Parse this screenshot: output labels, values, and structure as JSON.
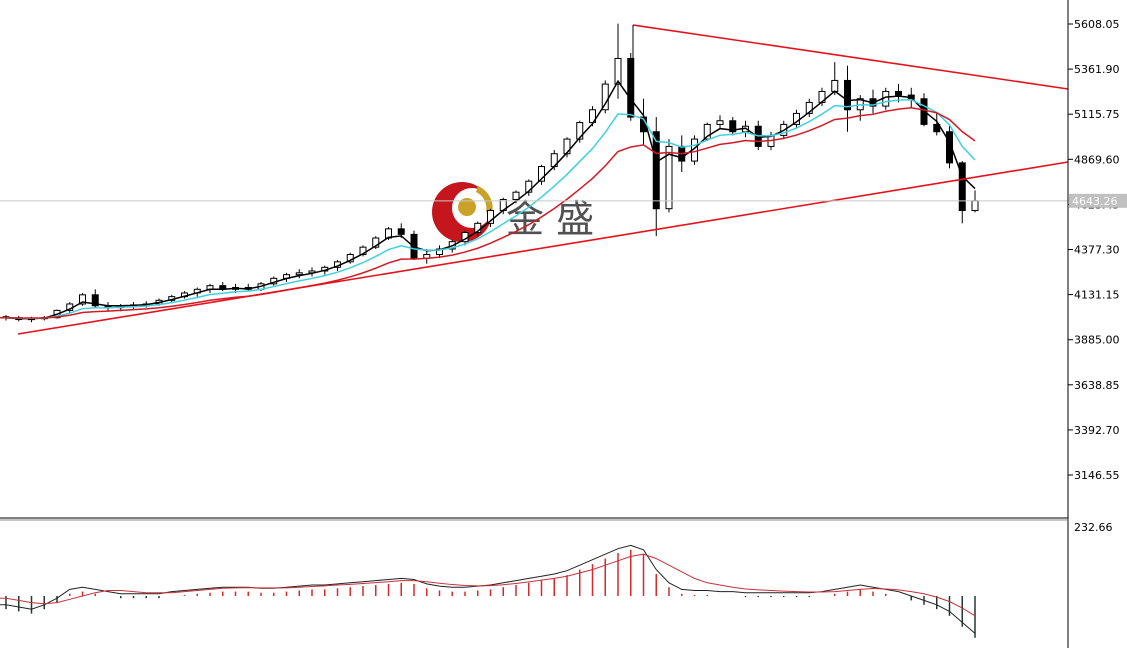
{
  "chart_data": {
    "type": "candlestick",
    "price_axis": {
      "ticks": [
        "5608.05",
        "5361.90",
        "5115.75",
        "4869.60",
        "4623.45",
        "4377.30",
        "4131.15",
        "3885.00",
        "3638.85",
        "3392.70",
        "3146.55"
      ],
      "range": [
        2900,
        5700
      ],
      "current_price": 4643,
      "current_label": "4643.26",
      "grid": false
    },
    "indicator_axis": {
      "ticks": [
        "232.66"
      ]
    },
    "watermark": {
      "text": "金 盛",
      "logo": "jinsheng-logo-icon"
    },
    "colors": {
      "background": "#ffffff",
      "trendline": "#e8101a",
      "ma_fast": "#000000",
      "ma_mid": "#3fd0e0",
      "ma_slow": "#d21a25",
      "hist_positive": "#d42a2a",
      "hist_negative": "#203a30"
    },
    "candles": [
      [
        4010,
        4020,
        3990,
        4005
      ],
      [
        4005,
        4015,
        3985,
        3995
      ],
      [
        3995,
        4010,
        3980,
        4000
      ],
      [
        4000,
        4015,
        3990,
        4005
      ],
      [
        4005,
        4050,
        4000,
        4045
      ],
      [
        4045,
        4090,
        4030,
        4080
      ],
      [
        4080,
        4140,
        4070,
        4130
      ],
      [
        4130,
        4160,
        4060,
        4070
      ],
      [
        4070,
        4090,
        4040,
        4060
      ],
      [
        4060,
        4080,
        4040,
        4070
      ],
      [
        4070,
        4090,
        4050,
        4075
      ],
      [
        4075,
        4095,
        4060,
        4080
      ],
      [
        4080,
        4110,
        4070,
        4100
      ],
      [
        4100,
        4130,
        4090,
        4120
      ],
      [
        4120,
        4150,
        4110,
        4140
      ],
      [
        4140,
        4170,
        4120,
        4160
      ],
      [
        4160,
        4190,
        4140,
        4180
      ],
      [
        4180,
        4200,
        4150,
        4160
      ],
      [
        4160,
        4190,
        4140,
        4170
      ],
      [
        4170,
        4190,
        4150,
        4160
      ],
      [
        4160,
        4200,
        4150,
        4190
      ],
      [
        4190,
        4230,
        4180,
        4220
      ],
      [
        4220,
        4250,
        4200,
        4240
      ],
      [
        4240,
        4270,
        4220,
        4250
      ],
      [
        4250,
        4280,
        4230,
        4260
      ],
      [
        4260,
        4290,
        4240,
        4280
      ],
      [
        4280,
        4320,
        4260,
        4310
      ],
      [
        4310,
        4360,
        4300,
        4350
      ],
      [
        4350,
        4400,
        4340,
        4390
      ],
      [
        4390,
        4450,
        4380,
        4440
      ],
      [
        4440,
        4500,
        4430,
        4490
      ],
      [
        4490,
        4520,
        4440,
        4460
      ],
      [
        4460,
        4480,
        4320,
        4330
      ],
      [
        4330,
        4380,
        4300,
        4350
      ],
      [
        4350,
        4400,
        4330,
        4380
      ],
      [
        4380,
        4430,
        4360,
        4420
      ],
      [
        4420,
        4480,
        4400,
        4470
      ],
      [
        4470,
        4530,
        4450,
        4520
      ],
      [
        4520,
        4600,
        4500,
        4590
      ],
      [
        4590,
        4660,
        4570,
        4650
      ],
      [
        4650,
        4700,
        4630,
        4690
      ],
      [
        4690,
        4760,
        4670,
        4750
      ],
      [
        4750,
        4840,
        4730,
        4830
      ],
      [
        4830,
        4920,
        4810,
        4900
      ],
      [
        4900,
        4990,
        4880,
        4980
      ],
      [
        4980,
        5080,
        4960,
        5070
      ],
      [
        5070,
        5160,
        5050,
        5140
      ],
      [
        5140,
        5300,
        5120,
        5280
      ],
      [
        5280,
        5610,
        5200,
        5420
      ],
      [
        5420,
        5450,
        5080,
        5100
      ],
      [
        5100,
        5200,
        4950,
        5020
      ],
      [
        5020,
        5100,
        4450,
        4600
      ],
      [
        4600,
        4980,
        4580,
        4940
      ],
      [
        4940,
        5000,
        4800,
        4860
      ],
      [
        4860,
        5000,
        4840,
        4980
      ],
      [
        4980,
        5070,
        4970,
        5060
      ],
      [
        5060,
        5110,
        5040,
        5080
      ],
      [
        5080,
        5100,
        5000,
        5020
      ],
      [
        5020,
        5080,
        4990,
        5050
      ],
      [
        5050,
        5080,
        4920,
        4940
      ],
      [
        4940,
        5020,
        4920,
        5000
      ],
      [
        5000,
        5080,
        4980,
        5060
      ],
      [
        5060,
        5140,
        5040,
        5120
      ],
      [
        5120,
        5200,
        5100,
        5180
      ],
      [
        5180,
        5260,
        5160,
        5240
      ],
      [
        5240,
        5400,
        5220,
        5300
      ],
      [
        5300,
        5380,
        5020,
        5140
      ],
      [
        5140,
        5220,
        5080,
        5200
      ],
      [
        5200,
        5250,
        5120,
        5160
      ],
      [
        5160,
        5260,
        5140,
        5240
      ],
      [
        5240,
        5280,
        5180,
        5220
      ],
      [
        5220,
        5260,
        5150,
        5200
      ],
      [
        5200,
        5230,
        5050,
        5060
      ],
      [
        5060,
        5120,
        5000,
        5020
      ],
      [
        5020,
        5060,
        4820,
        4850
      ],
      [
        4850,
        4860,
        4520,
        4590
      ],
      [
        4590,
        4700,
        4580,
        4643
      ]
    ],
    "macd_main": [
      -0.6,
      -0.7,
      -0.8,
      -0.6,
      -0.3,
      0.1,
      0.2,
      0.1,
      0.0,
      -0.1,
      -0.1,
      -0.1,
      -0.1,
      0.0,
      0.05,
      0.1,
      0.15,
      0.2,
      0.2,
      0.2,
      0.15,
      0.15,
      0.2,
      0.25,
      0.3,
      0.3,
      0.35,
      0.4,
      0.45,
      0.5,
      0.55,
      0.6,
      0.55,
      0.35,
      0.25,
      0.2,
      0.2,
      0.25,
      0.3,
      0.4,
      0.5,
      0.6,
      0.7,
      0.8,
      0.95,
      1.2,
      1.45,
      1.7,
      1.95,
      2.1,
      1.9,
      1.0,
      0.4,
      0.1,
      0.05,
      0.05,
      0.0,
      0.0,
      -0.05,
      -0.05,
      -0.05,
      -0.05,
      -0.05,
      -0.05,
      0.0,
      0.1,
      0.2,
      0.3,
      0.2,
      0.1,
      0.0,
      -0.2,
      -0.4,
      -0.6,
      -0.9,
      -1.4,
      -1.9
    ],
    "macd_signal": [
      -0.3,
      -0.4,
      -0.5,
      -0.55,
      -0.5,
      -0.35,
      -0.2,
      -0.05,
      0.05,
      0.05,
      0.0,
      -0.05,
      -0.05,
      -0.05,
      0.0,
      0.05,
      0.1,
      0.15,
      0.17,
      0.18,
      0.17,
      0.17,
      0.17,
      0.2,
      0.23,
      0.26,
      0.3,
      0.33,
      0.37,
      0.41,
      0.45,
      0.5,
      0.5,
      0.45,
      0.38,
      0.32,
      0.28,
      0.26,
      0.27,
      0.31,
      0.37,
      0.44,
      0.52,
      0.6,
      0.7,
      0.85,
      1.0,
      1.2,
      1.4,
      1.6,
      1.7,
      1.5,
      1.2,
      0.9,
      0.6,
      0.4,
      0.3,
      0.2,
      0.12,
      0.08,
      0.05,
      0.02,
      0.0,
      -0.02,
      -0.02,
      0.0,
      0.05,
      0.1,
      0.14,
      0.12,
      0.08,
      0.0,
      -0.1,
      -0.25,
      -0.45,
      -0.75,
      -1.1
    ]
  }
}
